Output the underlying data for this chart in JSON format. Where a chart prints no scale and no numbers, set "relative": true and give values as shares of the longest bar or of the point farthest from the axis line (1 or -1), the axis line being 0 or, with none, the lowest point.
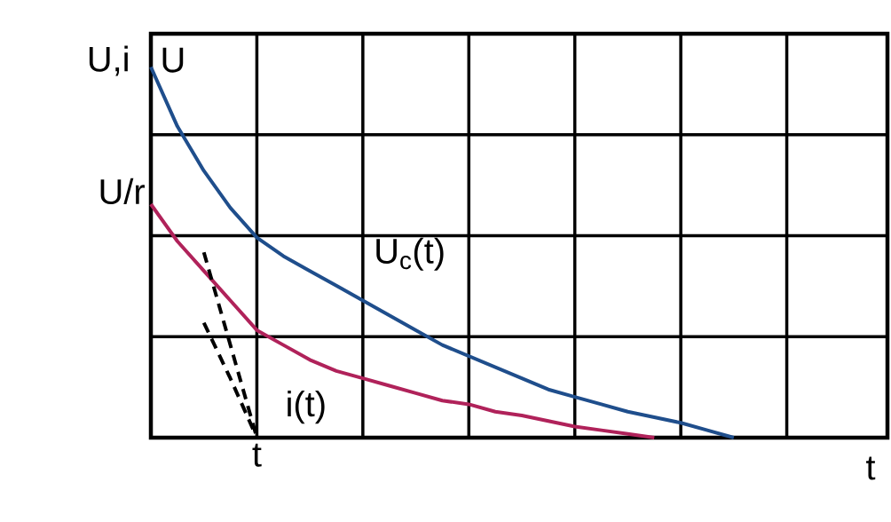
{
  "chart_data": {
    "type": "line",
    "relative": true,
    "xlabel": "t",
    "ylabel": "U,i",
    "grid": true,
    "categories": [
      null,
      null,
      null,
      null,
      null,
      null,
      null,
      null,
      null,
      null,
      null,
      null,
      null,
      null,
      null,
      null,
      null,
      null,
      null,
      null,
      null,
      null,
      null
    ],
    "series": [
      {
        "color": "#1f4e8c",
        "line_style": "solid",
        "values": [
          1,
          0.84,
          0.72,
          0.62,
          0.54,
          0.49,
          0.45,
          0.41,
          0.37,
          0.33,
          0.29,
          0.25,
          0.22,
          0.19,
          0.16,
          0.13,
          0.11,
          0.09,
          0.07,
          0.055,
          0.04,
          0.02,
          0
        ]
      },
      {
        "color": "#b0225a",
        "line_style": "solid",
        "values": [
          0.63,
          0.53,
          0.45,
          0.37,
          0.29,
          0.25,
          0.21,
          0.18,
          0.16,
          0.14,
          0.12,
          0.1,
          0.09,
          0.07,
          0.06,
          0.045,
          0.03,
          0.02,
          0.01,
          0,
          null,
          null,
          null
        ]
      },
      {
        "color": "#000000",
        "line_style": "dashed",
        "values": [
          null,
          null,
          0.5,
          0.25,
          0,
          null,
          null,
          null,
          null,
          null,
          null,
          null,
          null,
          null,
          null,
          null,
          null,
          null,
          null,
          null,
          null,
          null,
          null
        ]
      },
      {
        "color": "#000000",
        "line_style": "dashed",
        "values": [
          null,
          null,
          0.31,
          0.16,
          0,
          null,
          null,
          null,
          null,
          null,
          null,
          null,
          null,
          null,
          null,
          null,
          null,
          null,
          null,
          null,
          null,
          null,
          null
        ]
      }
    ],
    "annotations": [
      "U",
      "U$_{c}$(t)",
      "i(t)",
      "U/r",
      "t"
    ]
  }
}
